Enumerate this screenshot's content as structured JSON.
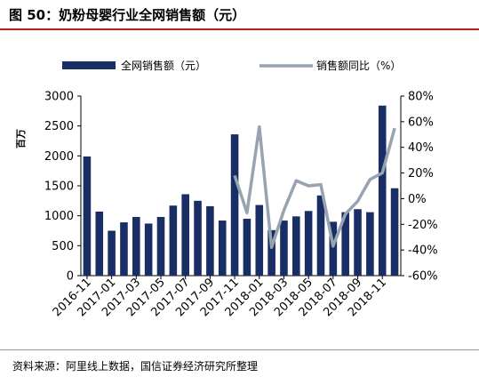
{
  "header": {
    "title": "图 50：奶粉母婴行业全网销售额（元）"
  },
  "footer": {
    "source": "资料来源：阿里线上数据，国信证券经济研究所整理"
  },
  "colors": {
    "bar": "#1a2e66",
    "line": "#97a3b0",
    "text": "#000000"
  },
  "chart_data": {
    "type": "bar",
    "title": "",
    "xlabel": "",
    "ylabel": "百万",
    "ylim": [
      0,
      3000
    ],
    "y2lim": [
      -0.6,
      0.8
    ],
    "yticks": [
      0,
      500,
      1000,
      1500,
      2000,
      2500,
      3000
    ],
    "y2ticks": [
      "-60%",
      "-40%",
      "-20%",
      "0%",
      "20%",
      "40%",
      "60%",
      "80%"
    ],
    "legend_position": "top",
    "categories": [
      "2016-11",
      "2016-12",
      "2017-01",
      "2017-02",
      "2017-03",
      "2017-04",
      "2017-05",
      "2017-06",
      "2017-07",
      "2017-08",
      "2017-09",
      "2017-10",
      "2017-11",
      "2017-12",
      "2018-01",
      "2018-02",
      "2018-03",
      "2018-04",
      "2018-05",
      "2018-06",
      "2018-07",
      "2018-08",
      "2018-09",
      "2018-10",
      "2018-11",
      "2018-12"
    ],
    "xtick_labels": [
      "2016-11",
      "2017-01",
      "2017-03",
      "2017-05",
      "2017-07",
      "2017-09",
      "2017-11",
      "2018-01",
      "2018-03",
      "2018-05",
      "2018-07",
      "2018-09",
      "2018-11"
    ],
    "series": [
      {
        "name": "全网销售额（元）",
        "type": "bar",
        "axis": "left",
        "values": [
          1990,
          1070,
          750,
          890,
          980,
          870,
          980,
          1170,
          1360,
          1250,
          1160,
          920,
          2360,
          950,
          1180,
          760,
          920,
          990,
          1080,
          1340,
          900,
          1060,
          1110,
          1060,
          2840,
          1460
        ]
      },
      {
        "name": "销售额同比（%）",
        "type": "line",
        "axis": "right",
        "values": [
          null,
          null,
          null,
          null,
          null,
          null,
          null,
          null,
          null,
          null,
          null,
          null,
          0.18,
          -0.11,
          0.56,
          -0.38,
          -0.09,
          0.14,
          0.1,
          0.11,
          -0.37,
          -0.12,
          -0.02,
          0.15,
          0.2,
          0.55
        ]
      }
    ]
  }
}
